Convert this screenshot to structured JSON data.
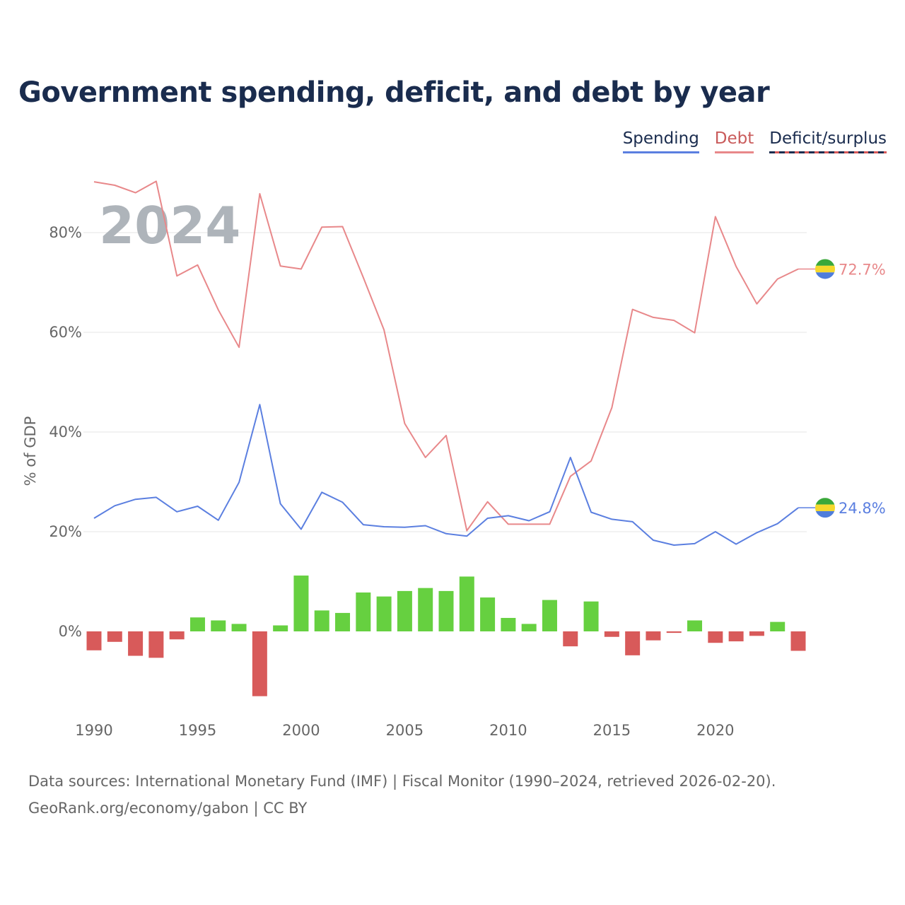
{
  "title": "Government spending, deficit, and debt by year",
  "legend": {
    "spending": "Spending",
    "debt": "Debt",
    "deficit": "Deficit/surplus"
  },
  "colors": {
    "spending": "#5b7fe0",
    "debt": "#e8888a",
    "surplus": "#66d040",
    "deficit": "#d85a5a",
    "legend_dark": "#1a2c4e",
    "grid": "#e6e6e6",
    "flag_green": "#3aa83a",
    "flag_yellow": "#f5d82c",
    "flag_blue": "#4f7ddb"
  },
  "year_watermark": "2024",
  "end_labels": {
    "debt": "72.7%",
    "spending": "24.8%"
  },
  "footer": {
    "sources": "Data sources: International Monetary Fund (IMF) | Fiscal Monitor (1990–2024, retrieved 2026-02-20).",
    "site": "GeoRank.org/economy/gabon | CC BY"
  },
  "chart_data": {
    "type": "line+bar",
    "title": "Government spending, deficit, and debt by year",
    "ylabel": "% of GDP",
    "xlabel": "",
    "xlim": [
      1990,
      2024
    ],
    "ylim": [
      -17,
      92
    ],
    "y_ticks": [
      0,
      20,
      40,
      60,
      80
    ],
    "y_tick_labels": [
      "0%",
      "20%",
      "40%",
      "60%",
      "80%"
    ],
    "x_ticks": [
      1990,
      1995,
      2000,
      2005,
      2010,
      2015,
      2020
    ],
    "x_tick_labels": [
      "1990",
      "1995",
      "2000",
      "2005",
      "2010",
      "2015",
      "2020"
    ],
    "grid": true,
    "legend_position": "top-right",
    "years": [
      1990,
      1991,
      1992,
      1993,
      1994,
      1995,
      1996,
      1997,
      1998,
      1999,
      2000,
      2001,
      2002,
      2003,
      2004,
      2005,
      2006,
      2007,
      2008,
      2009,
      2010,
      2011,
      2012,
      2013,
      2014,
      2015,
      2016,
      2017,
      2018,
      2019,
      2020,
      2021,
      2022,
      2023,
      2024
    ],
    "series": [
      {
        "name": "Spending",
        "kind": "line",
        "values": [
          22.7,
          25.2,
          26.5,
          26.9,
          24.0,
          25.1,
          22.3,
          29.9,
          45.5,
          25.6,
          20.5,
          27.9,
          25.9,
          21.4,
          21.0,
          20.9,
          21.2,
          19.6,
          19.1,
          22.7,
          23.2,
          22.2,
          24.0,
          34.9,
          23.9,
          22.5,
          22.0,
          18.3,
          17.3,
          17.6,
          20.0,
          17.5,
          19.8,
          21.6,
          24.8
        ]
      },
      {
        "name": "Debt",
        "kind": "line",
        "values": [
          90.2,
          89.5,
          88.0,
          90.3,
          71.3,
          73.5,
          64.5,
          57.0,
          87.8,
          73.3,
          72.7,
          81.1,
          81.2,
          71.0,
          60.5,
          41.7,
          34.9,
          39.3,
          20.2,
          26.0,
          21.5,
          21.5,
          21.5,
          31.1,
          34.2,
          44.9,
          64.6,
          63.0,
          62.4,
          59.9,
          83.2,
          73.2,
          65.7,
          70.7,
          72.7
        ]
      },
      {
        "name": "Deficit/surplus",
        "kind": "bar",
        "values": [
          -3.8,
          -2.1,
          -4.9,
          -5.3,
          -1.6,
          2.8,
          2.2,
          1.5,
          -13.0,
          1.2,
          11.2,
          4.2,
          3.7,
          7.8,
          7.0,
          8.1,
          8.7,
          8.1,
          11.0,
          6.8,
          2.7,
          1.5,
          6.3,
          -3.0,
          6.0,
          -1.1,
          -4.8,
          -1.8,
          -0.3,
          2.2,
          -2.3,
          -2.0,
          -0.9,
          1.9,
          -3.9
        ]
      }
    ]
  }
}
